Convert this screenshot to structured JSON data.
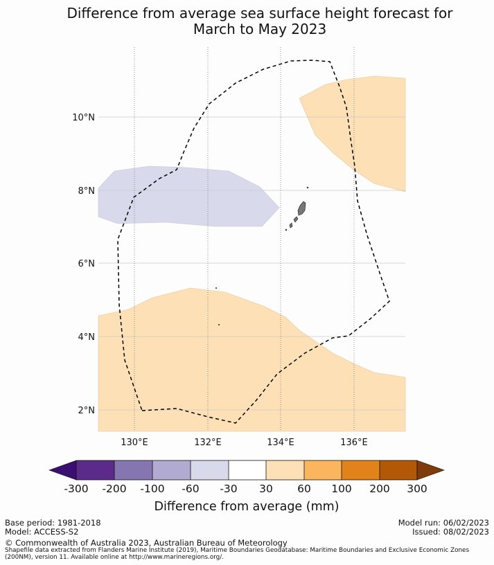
{
  "title_line1": "Difference from average sea surface height forecast for",
  "title_line2": "March to May 2023",
  "map": {
    "lon_ticks": [
      "130°E",
      "132°E",
      "134°E",
      "136°E"
    ],
    "lat_ticks": [
      "10°N",
      "8°N",
      "6°N",
      "4°N",
      "2°N"
    ],
    "lon_range": [
      129,
      137.4
    ],
    "lat_range": [
      1.4,
      12.0
    ],
    "layers": [
      {
        "name": "positive-anomaly-30-60mm",
        "color": "#fde0b6"
      },
      {
        "name": "negative-anomaly-60-30mm",
        "color": "#d8d9ea"
      },
      {
        "name": "eez-boundary",
        "style": "dashed"
      },
      {
        "name": "land",
        "color": "#777777"
      }
    ]
  },
  "colorbar": {
    "labels": [
      "-300",
      "-200",
      "-100",
      "-60",
      "-30",
      "30",
      "60",
      "100",
      "200",
      "300"
    ],
    "colors": [
      "#3b0f6f",
      "#5b2a8b",
      "#8575b0",
      "#b1aad1",
      "#d8d9ea",
      "#ffffff",
      "#fde0b6",
      "#fbb55f",
      "#e1821a",
      "#b35806",
      "#7f3b08"
    ],
    "title": "Difference from average (mm)"
  },
  "footer": {
    "base_period": "Base period: 1981-2018",
    "model": "Model: ACCESS-S2",
    "model_run": "Model run: 06/02/2023",
    "issued": "Issued: 08/02/2023",
    "copyright": "© Commonwealth of Australia 2023, Australian Bureau of Meteorology",
    "shapefile": "Shapefile data extracted from Flanders Marine Institute (2019), Maritime Boundaries Geodatabase: Maritime Boundaries and Exclusive Economic Zones (200NM), version 11. Available online at http://www.marineregions.org/."
  }
}
